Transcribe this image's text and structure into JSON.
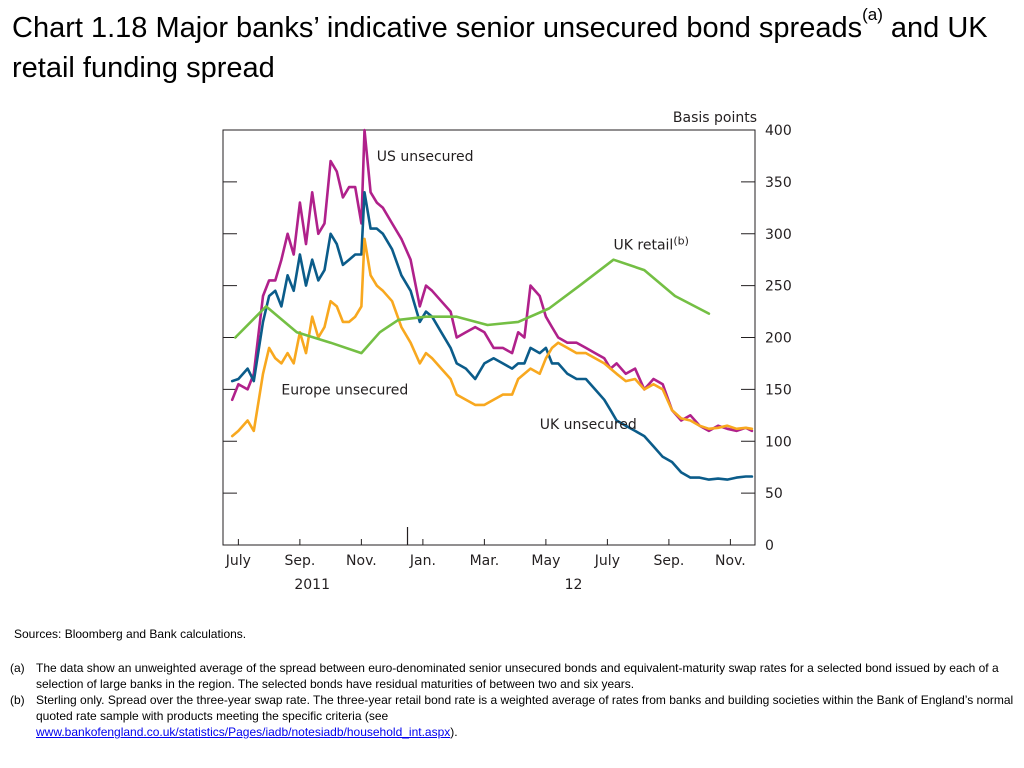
{
  "title": {
    "main": "Chart 1.18  Major banks’ indicative senior unsecured bond spreads",
    "sup": "(a)",
    "rest": " and UK retail funding spread"
  },
  "sources": "Sources:  Bloomberg and Bank calculations.",
  "notes": [
    {
      "marker": "(a)",
      "text": "The data show an unweighted average of the spread between euro-denominated senior unsecured bonds and equivalent-maturity swap rates for a selected bond issued by each of a selection of large banks in the region.  The selected bonds have residual maturities of between two and six years."
    },
    {
      "marker": "(b)",
      "text": "Sterling only.  Spread over the three-year swap rate.  The three-year retail bond rate is a weighted average of rates from banks and building societies within the Bank of England’s normal quoted rate sample with products meeting the specific criteria (see",
      "link": "www.bankofengland.co.uk/statistics/Pages/iadb/notesiadb/household_int.aspx",
      "after": ")."
    }
  ],
  "chart_data": {
    "type": "line",
    "title": "",
    "xlabel": "",
    "ylabel": "Basis points",
    "ylim": [
      0,
      400
    ],
    "yticks": [
      0,
      50,
      100,
      150,
      200,
      250,
      300,
      350,
      400
    ],
    "xlim": [
      6.5,
      23.8
    ],
    "x_unit": "month index (2011-01 = 1, 2012-01 = 13)",
    "month_ticks": [
      {
        "x": 7,
        "label": "July"
      },
      {
        "x": 9,
        "label": "Sep."
      },
      {
        "x": 11,
        "label": "Nov."
      },
      {
        "x": 13,
        "label": "Jan."
      },
      {
        "x": 15,
        "label": "Mar."
      },
      {
        "x": 17,
        "label": "May"
      },
      {
        "x": 19,
        "label": "July"
      },
      {
        "x": 21,
        "label": "Sep."
      },
      {
        "x": 23,
        "label": "Nov."
      }
    ],
    "year_labels": [
      {
        "x": 9.4,
        "label": "2011"
      },
      {
        "x": 17.9,
        "label": "12"
      }
    ],
    "year_divider": 12.5,
    "grid": false,
    "series": [
      {
        "name": "US unsecured",
        "color": "#b0218b",
        "label_at": [
          11.5,
          370
        ],
        "x": [
          6.8,
          7.0,
          7.3,
          7.5,
          7.8,
          8.0,
          8.2,
          8.4,
          8.6,
          8.8,
          9.0,
          9.2,
          9.4,
          9.6,
          9.8,
          10.0,
          10.2,
          10.4,
          10.6,
          10.8,
          11.0,
          11.1,
          11.3,
          11.5,
          11.7,
          12.0,
          12.3,
          12.6,
          12.9,
          13.1,
          13.3,
          13.6,
          13.9,
          14.1,
          14.4,
          14.7,
          15.0,
          15.3,
          15.6,
          15.9,
          16.1,
          16.3,
          16.5,
          16.8,
          17.0,
          17.2,
          17.4,
          17.7,
          18.0,
          18.3,
          18.6,
          18.9,
          19.1,
          19.3,
          19.6,
          19.9,
          20.2,
          20.5,
          20.8,
          21.1,
          21.4,
          21.7,
          22.0,
          22.3,
          22.6,
          22.9,
          23.2,
          23.5,
          23.7
        ],
        "y": [
          140,
          155,
          150,
          165,
          240,
          255,
          255,
          275,
          300,
          280,
          330,
          290,
          340,
          300,
          310,
          370,
          360,
          335,
          345,
          345,
          310,
          400,
          340,
          330,
          325,
          310,
          295,
          275,
          230,
          250,
          245,
          235,
          225,
          200,
          205,
          210,
          205,
          190,
          190,
          185,
          205,
          200,
          250,
          240,
          220,
          210,
          200,
          195,
          195,
          190,
          185,
          180,
          170,
          175,
          165,
          170,
          150,
          160,
          155,
          130,
          120,
          125,
          115,
          110,
          115,
          112,
          110,
          113,
          110
        ]
      },
      {
        "name": "UK unsecured",
        "color": "#0b5c8a",
        "label_at": [
          16.8,
          112
        ],
        "x": [
          6.8,
          7.0,
          7.3,
          7.5,
          7.8,
          8.0,
          8.2,
          8.4,
          8.6,
          8.8,
          9.0,
          9.2,
          9.4,
          9.6,
          9.8,
          10.0,
          10.2,
          10.4,
          10.6,
          10.8,
          11.0,
          11.1,
          11.3,
          11.5,
          11.7,
          12.0,
          12.3,
          12.6,
          12.9,
          13.1,
          13.3,
          13.6,
          13.9,
          14.1,
          14.4,
          14.7,
          15.0,
          15.3,
          15.6,
          15.9,
          16.1,
          16.3,
          16.5,
          16.8,
          17.0,
          17.2,
          17.4,
          17.7,
          18.0,
          18.3,
          18.6,
          18.9,
          19.1,
          19.3,
          19.6,
          19.9,
          20.2,
          20.5,
          20.8,
          21.1,
          21.4,
          21.7,
          22.0,
          22.3,
          22.6,
          22.9,
          23.2,
          23.5,
          23.7
        ],
        "y": [
          158,
          160,
          170,
          158,
          215,
          240,
          245,
          230,
          260,
          245,
          280,
          250,
          275,
          255,
          265,
          300,
          290,
          270,
          275,
          280,
          280,
          340,
          305,
          305,
          300,
          285,
          260,
          245,
          215,
          225,
          220,
          205,
          190,
          175,
          170,
          160,
          175,
          180,
          175,
          170,
          175,
          175,
          190,
          185,
          190,
          175,
          175,
          165,
          160,
          160,
          150,
          140,
          130,
          120,
          115,
          110,
          105,
          95,
          85,
          80,
          70,
          65,
          65,
          63,
          64,
          63,
          65,
          66,
          66
        ]
      },
      {
        "name": "Europe unsecured",
        "color": "#f8a81f",
        "label_at": [
          8.4,
          145
        ],
        "x": [
          6.8,
          7.0,
          7.3,
          7.5,
          7.8,
          8.0,
          8.2,
          8.4,
          8.6,
          8.8,
          9.0,
          9.2,
          9.4,
          9.6,
          9.8,
          10.0,
          10.2,
          10.4,
          10.6,
          10.8,
          11.0,
          11.1,
          11.3,
          11.5,
          11.7,
          12.0,
          12.3,
          12.6,
          12.9,
          13.1,
          13.3,
          13.6,
          13.9,
          14.1,
          14.4,
          14.7,
          15.0,
          15.3,
          15.6,
          15.9,
          16.1,
          16.3,
          16.5,
          16.8,
          17.0,
          17.2,
          17.4,
          17.7,
          18.0,
          18.3,
          18.6,
          18.9,
          19.1,
          19.3,
          19.6,
          19.9,
          20.2,
          20.5,
          20.8,
          21.1,
          21.4,
          21.7,
          22.0,
          22.3,
          22.6,
          22.9,
          23.2,
          23.5,
          23.7
        ],
        "y": [
          105,
          110,
          120,
          110,
          165,
          190,
          180,
          175,
          185,
          175,
          205,
          185,
          220,
          200,
          210,
          235,
          230,
          215,
          215,
          220,
          230,
          295,
          260,
          250,
          245,
          235,
          210,
          195,
          175,
          185,
          180,
          170,
          160,
          145,
          140,
          135,
          135,
          140,
          145,
          145,
          160,
          165,
          170,
          165,
          180,
          190,
          195,
          190,
          185,
          185,
          180,
          175,
          170,
          165,
          158,
          160,
          150,
          155,
          150,
          130,
          122,
          120,
          115,
          112,
          113,
          115,
          112,
          113,
          112
        ]
      },
      {
        "name": "UK retail",
        "name_sup": "(b)",
        "color": "#74bf44",
        "label_at": [
          19.2,
          285
        ],
        "x": [
          6.9,
          7.9,
          8.9,
          10.0,
          11.0,
          11.6,
          12.2,
          13.1,
          14.1,
          15.1,
          16.1,
          17.1,
          18.1,
          19.2,
          20.2,
          21.2,
          22.3
        ],
        "y": [
          200,
          230,
          205,
          195,
          185,
          205,
          217,
          220,
          220,
          212,
          215,
          228,
          250,
          275,
          265,
          240,
          223
        ]
      }
    ]
  }
}
